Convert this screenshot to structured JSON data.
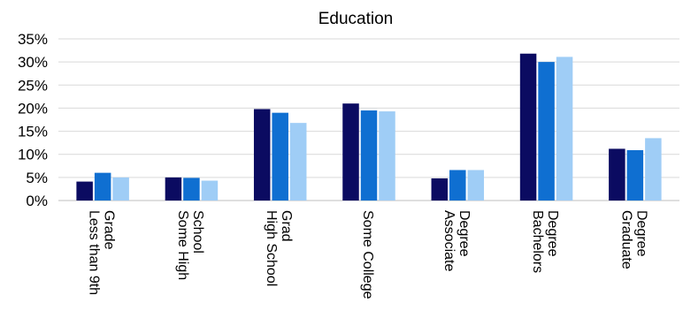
{
  "chart_data": {
    "type": "bar",
    "title": "Education",
    "xlabel": "",
    "ylabel": "",
    "ylim": [
      0,
      35
    ],
    "yticks": [
      "0%",
      "5%",
      "10%",
      "15%",
      "20%",
      "25%",
      "30%",
      "35%"
    ],
    "grid": true,
    "legend": "none",
    "categories": [
      [
        "Less than 9th",
        "Grade"
      ],
      [
        "Some High",
        "School"
      ],
      [
        "High School",
        "Grad"
      ],
      [
        "Some College"
      ],
      [
        "Associate",
        "Degree"
      ],
      [
        "Bachelors",
        "Degree"
      ],
      [
        "Graduate",
        "Degree"
      ]
    ],
    "series": [
      {
        "color": "#0b0b61",
        "values": [
          4.1,
          5.0,
          19.8,
          21.0,
          4.8,
          31.8,
          11.2
        ]
      },
      {
        "color": "#0f6fd1",
        "values": [
          6.0,
          4.9,
          19.0,
          19.5,
          6.6,
          30.0,
          10.9
        ]
      },
      {
        "color": "#9fcdf6",
        "values": [
          5.0,
          4.3,
          16.8,
          19.3,
          6.6,
          31.1,
          13.5
        ]
      }
    ]
  }
}
